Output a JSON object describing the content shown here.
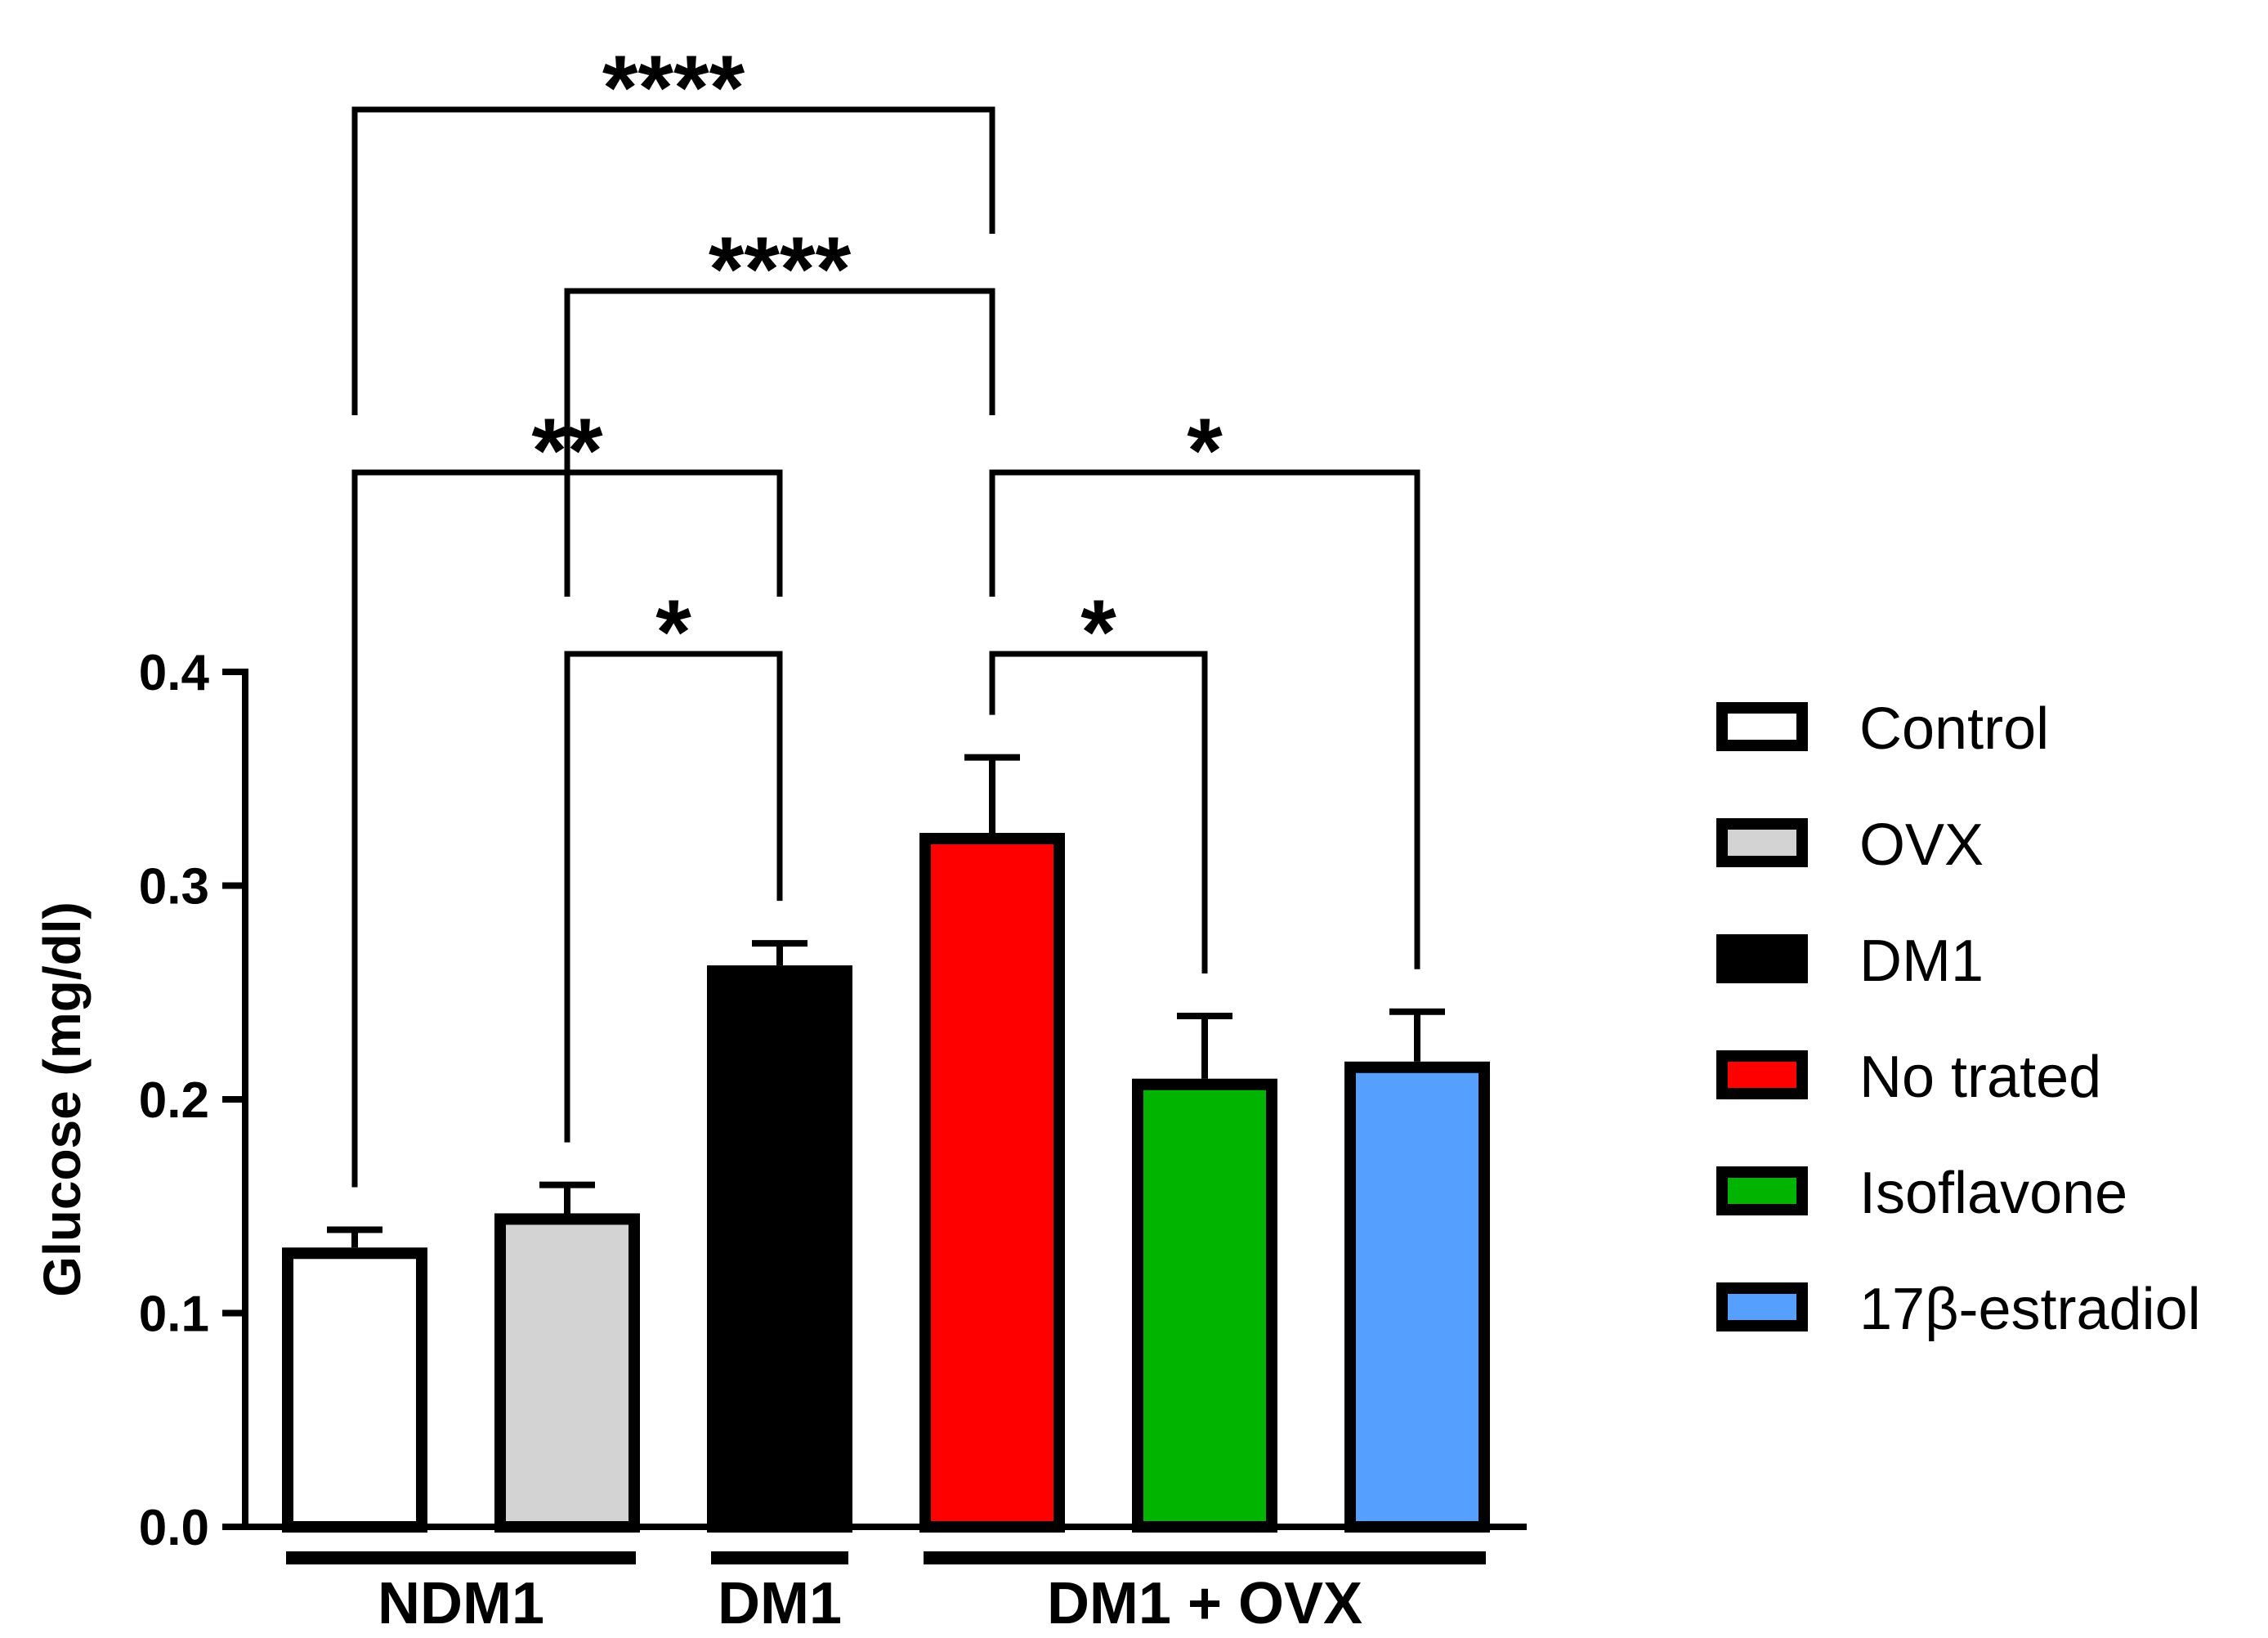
{
  "chart_data": {
    "type": "bar",
    "title": "",
    "xlabel": "",
    "ylabel": "Glucose (mg/dl)",
    "ylim": [
      0,
      0.4
    ],
    "yticks": [
      0.0,
      0.1,
      0.2,
      0.3,
      0.4
    ],
    "ytick_labels": [
      "0.0",
      "0.1",
      "0.2",
      "0.3",
      "0.4"
    ],
    "categories": [
      "Control",
      "OVX",
      "DM1",
      "No trated",
      "Isoflavone",
      "17β-estradiol"
    ],
    "values": [
      0.128,
      0.144,
      0.26,
      0.322,
      0.207,
      0.215
    ],
    "error": [
      0.011,
      0.016,
      0.013,
      0.038,
      0.032,
      0.026
    ],
    "colors": [
      "#ffffff",
      "#d3d3d3",
      "#000000",
      "#ff0000",
      "#00b400",
      "#55a0ff"
    ],
    "groups": [
      {
        "label": "NDM1",
        "start": 0,
        "end": 1
      },
      {
        "label": "DM1",
        "start": 2,
        "end": 2
      },
      {
        "label": "DM1 + OVX",
        "start": 3,
        "end": 5
      }
    ],
    "significance": [
      {
        "from": 0,
        "to": 3,
        "label": "****",
        "level": 3
      },
      {
        "from": 1,
        "to": 3,
        "label": "****",
        "level": 2
      },
      {
        "from": 0,
        "to": 2,
        "label": "**",
        "level": 1
      },
      {
        "from": 3,
        "to": 5,
        "label": "*",
        "level": 1
      },
      {
        "from": 1,
        "to": 2,
        "label": "*",
        "level": 0
      },
      {
        "from": 3,
        "to": 4,
        "label": "*",
        "level": 0
      }
    ],
    "legend": {
      "position": "right",
      "entries": [
        "Control",
        "OVX",
        "DM1",
        "No trated",
        "Isoflavone",
        "17β-estradiol"
      ]
    }
  }
}
